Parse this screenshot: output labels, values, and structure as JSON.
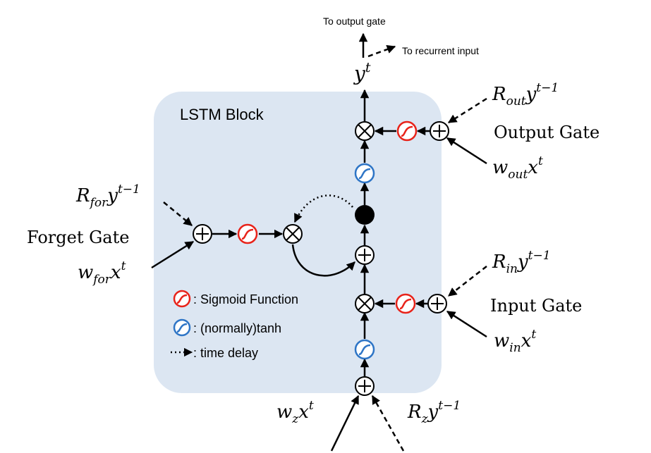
{
  "block_title": "LSTM Block",
  "top": {
    "to_output_gate": "To output gate",
    "to_recurrent_input": "To recurrent input",
    "output": {
      "base": "y",
      "sup": "t"
    }
  },
  "gates": {
    "output": {
      "name": "Output Gate",
      "recurrent": {
        "base": "R",
        "sub": "out",
        "tail": "y",
        "sup": "t−1"
      },
      "input": {
        "base": "w",
        "sub": "out",
        "tail": "x",
        "sup": "t"
      }
    },
    "forget": {
      "name": "Forget Gate",
      "recurrent": {
        "base": "R",
        "sub": "for",
        "tail": "y",
        "sup": "t−1"
      },
      "input": {
        "base": "w",
        "sub": "for",
        "tail": "x",
        "sup": "t"
      }
    },
    "input": {
      "name": "Input Gate",
      "recurrent": {
        "base": "R",
        "sub": "in",
        "tail": "y",
        "sup": "t−1"
      },
      "input": {
        "base": "w",
        "sub": "in",
        "tail": "x",
        "sup": "t"
      }
    },
    "block_input": {
      "input": {
        "base": "w",
        "sub": "z",
        "tail": "x",
        "sup": "t"
      },
      "recurrent": {
        "base": "R",
        "sub": "z",
        "tail": "y",
        "sup": "t−1"
      }
    }
  },
  "legend": {
    "sigmoid": ": Sigmoid Function",
    "tanh": ":  (normally)tanh",
    "delay": ": time delay"
  },
  "colors": {
    "block_fill": "#dce6f2",
    "sigmoid": "#e8231a",
    "tanh": "#2e75c6",
    "stroke": "#000000"
  }
}
